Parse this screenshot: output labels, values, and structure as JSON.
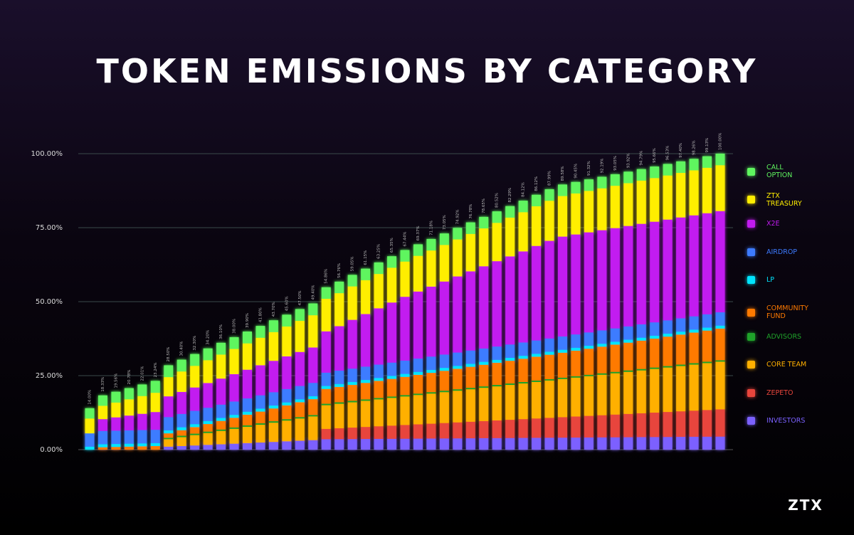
{
  "chart_data": {
    "type": "stacked_bar",
    "title": "TOKEN EMISSIONS BY CATEGORY",
    "brand": "ZTX",
    "ylim": [
      0,
      100
    ],
    "yticks": [
      {
        "value": 0,
        "label": "0.00%"
      },
      {
        "value": 25,
        "label": "25.00%"
      },
      {
        "value": 50,
        "label": "50.00%"
      },
      {
        "value": 75,
        "label": "75.00%"
      },
      {
        "value": 100,
        "label": "100.00%"
      }
    ],
    "grid": true,
    "legend": "right",
    "totals": [
      14.0,
      18.33,
      19.56,
      20.78,
      22.01,
      23.24,
      28.5,
      30.4,
      32.3,
      34.2,
      36.1,
      38.0,
      39.9,
      41.8,
      43.7,
      45.6,
      47.5,
      49.4,
      54.86,
      56.76,
      59.05,
      61.15,
      63.25,
      65.35,
      67.44,
      69.37,
      71.18,
      73.05,
      74.92,
      76.78,
      78.65,
      80.52,
      82.29,
      84.12,
      86.12,
      87.99,
      89.58,
      90.45,
      91.32,
      92.19,
      93.05,
      93.92,
      94.79,
      95.66,
      96.53,
      97.4,
      98.26,
      99.13,
      100.0
    ],
    "total_labels": [
      "14.00%",
      "18.33%",
      "19.56%",
      "20.78%",
      "22.01%",
      "23.24%",
      "28.50%",
      "30.40%",
      "32.30%",
      "34.20%",
      "36.10%",
      "38.00%",
      "39.90%",
      "41.80%",
      "43.70%",
      "45.60%",
      "47.50%",
      "49.40%",
      "54.86%",
      "56.76%",
      "59.05%",
      "61.15%",
      "63.25%",
      "65.35%",
      "67.44%",
      "69.37%",
      "71.18%",
      "73.05%",
      "74.92%",
      "76.78%",
      "78.65%",
      "80.52%",
      "82.29%",
      "84.12%",
      "86.12%",
      "87.99%",
      "89.58%",
      "90.45%",
      "91.32%",
      "92.19%",
      "93.05%",
      "93.92%",
      "94.79%",
      "95.66%",
      "96.53%",
      "97.40%",
      "98.26%",
      "99.13%",
      "100.00%"
    ],
    "series": [
      {
        "name": "INVESTORS",
        "color": "#7b61ff",
        "values": [
          0,
          0,
          0,
          0,
          0,
          0,
          1.0,
          1.2,
          1.4,
          1.6,
          1.8,
          2.0,
          2.2,
          2.4,
          2.6,
          2.8,
          3.0,
          3.2,
          3.5,
          3.53,
          3.56,
          3.59,
          3.62,
          3.65,
          3.68,
          3.71,
          3.74,
          3.77,
          3.8,
          3.83,
          3.86,
          3.89,
          3.92,
          3.95,
          3.98,
          4.01,
          4.04,
          4.07,
          4.1,
          4.13,
          4.16,
          4.19,
          4.22,
          4.25,
          4.28,
          4.31,
          4.34,
          4.37,
          4.4
        ]
      },
      {
        "name": "ZEPETO",
        "color": "#e8453c",
        "values": [
          0,
          0,
          0,
          0,
          0,
          0,
          0,
          0,
          0,
          0,
          0,
          0,
          0,
          0,
          0,
          0,
          0,
          0,
          3.5,
          3.69,
          3.88,
          4.07,
          4.26,
          4.45,
          4.64,
          4.83,
          5.02,
          5.21,
          5.4,
          5.59,
          5.78,
          5.97,
          6.16,
          6.35,
          6.54,
          6.73,
          6.92,
          7.11,
          7.3,
          7.49,
          7.68,
          7.87,
          8.06,
          8.25,
          8.44,
          8.63,
          8.82,
          9.01,
          9.2
        ]
      },
      {
        "name": "CORE TEAM",
        "color": "#ffb000",
        "values": [
          0,
          0,
          0,
          0,
          0,
          0,
          2.5,
          3,
          3.5,
          4,
          4.5,
          5,
          5.5,
          6,
          6.5,
          7,
          7.5,
          8,
          8,
          8.27,
          8.54,
          8.81,
          9.08,
          9.35,
          9.62,
          9.89,
          10.16,
          10.43,
          10.7,
          10.97,
          11.24,
          11.51,
          11.78,
          12.05,
          12.32,
          12.59,
          12.86,
          13.13,
          13.4,
          13.67,
          13.94,
          14.21,
          14.48,
          14.75,
          15.02,
          15.29,
          15.56,
          15.83,
          16.1
        ]
      },
      {
        "name": "ADVISORS",
        "color": "#1fa32a",
        "values": [
          0,
          0,
          0,
          0,
          0,
          0,
          0.5,
          0.5,
          0.5,
          0.5,
          0.5,
          0.5,
          0.5,
          0.5,
          0.5,
          0.5,
          0.5,
          0.5,
          0.5,
          0.5,
          0.5,
          0.5,
          0.5,
          0.5,
          0.5,
          0.5,
          0.5,
          0.5,
          0.5,
          0.5,
          0.5,
          0.5,
          0.5,
          0.5,
          0.5,
          0.5,
          0.5,
          0.5,
          0.5,
          0.5,
          0.5,
          0.5,
          0.5,
          0.5,
          0.5,
          0.5,
          0.5,
          0.5,
          0.5
        ]
      },
      {
        "name": "COMMUNITY FUND",
        "color": "#ff7a00",
        "values": [
          0,
          0.8,
          0.9,
          1.0,
          1.1,
          1.2,
          1.5,
          1.85,
          2.2,
          2.55,
          2.9,
          3.25,
          3.6,
          3.95,
          4.3,
          4.65,
          5.0,
          5.35,
          5,
          5.19,
          5.38,
          5.57,
          5.76,
          5.95,
          6.14,
          6.33,
          6.52,
          6.71,
          6.9,
          7.09,
          7.28,
          7.47,
          7.66,
          7.85,
          8.04,
          8.23,
          8.42,
          8.61,
          8.8,
          8.99,
          9.18,
          9.37,
          9.56,
          9.75,
          9.94,
          10.13,
          10.32,
          10.51,
          10.7
        ]
      },
      {
        "name": "LP",
        "color": "#00e5ff",
        "values": [
          1,
          1,
          1,
          1,
          1,
          1,
          1,
          1,
          1,
          1,
          1,
          1,
          1,
          1,
          1,
          1,
          1,
          1,
          1,
          1,
          1,
          1,
          1,
          1,
          1,
          1,
          1,
          1,
          1,
          1,
          1,
          1,
          1,
          1,
          1,
          1,
          1,
          1,
          1,
          1,
          1,
          1,
          1,
          1,
          1,
          1,
          1,
          1,
          1
        ]
      },
      {
        "name": "AIRDROP",
        "color": "#3d7bff",
        "values": [
          4.5,
          4.5,
          4.5,
          4.5,
          4.5,
          4.5,
          4.5,
          4.5,
          4.5,
          4.5,
          4.5,
          4.5,
          4.5,
          4.5,
          4.5,
          4.5,
          4.5,
          4.5,
          4.5,
          4.5,
          4.5,
          4.5,
          4.5,
          4.5,
          4.5,
          4.5,
          4.5,
          4.5,
          4.5,
          4.5,
          4.5,
          4.5,
          4.5,
          4.5,
          4.5,
          4.5,
          4.5,
          4.5,
          4.5,
          4.5,
          4.5,
          4.5,
          4.5,
          4.5,
          4.5,
          4.5,
          4.5,
          4.5,
          4.5
        ]
      },
      {
        "name": "X2E",
        "color": "#c21bf0",
        "values": [
          0,
          4.0,
          4.5,
          5.0,
          5.5,
          6.0,
          7,
          7.45,
          7.9,
          8.35,
          8.8,
          9.25,
          9.7,
          10.15,
          10.6,
          11.05,
          11.5,
          11.95,
          13.96,
          15.03,
          16.49,
          17.76,
          19.03,
          20.3,
          21.56,
          22.66,
          23.64,
          24.68,
          25.72,
          26.75,
          27.79,
          28.83,
          29.77,
          30.77,
          31.94,
          32.98,
          33.74,
          33.78,
          33.82,
          33.86,
          33.89,
          33.93,
          33.97,
          34.01,
          34.05,
          34.09,
          34.12,
          34.16,
          34.2
        ]
      },
      {
        "name": "ZTX TREASURY",
        "color": "#ffee00",
        "values": [
          5.0,
          4.5,
          5.0,
          5.5,
          6.0,
          6.5,
          6.5,
          6.9,
          7.3,
          7.7,
          8.1,
          8.5,
          8.9,
          9.3,
          9.7,
          10.1,
          10.5,
          10.9,
          11,
          11.15,
          11.3,
          11.45,
          11.6,
          11.75,
          11.9,
          12.05,
          12.2,
          12.35,
          12.5,
          12.65,
          12.8,
          12.95,
          13.1,
          13.25,
          13.4,
          13.55,
          13.7,
          13.85,
          14,
          14.15,
          14.3,
          14.45,
          14.6,
          14.75,
          14.9,
          15.05,
          15.2,
          15.35,
          15.5
        ]
      },
      {
        "name": "CALL OPTION",
        "color": "#5ff55f",
        "values": [
          3.5,
          3.53,
          3.66,
          3.78,
          3.91,
          4.04,
          4,
          4,
          4,
          4,
          4,
          4,
          4,
          4,
          4,
          4,
          4,
          4,
          3.9,
          3.9,
          3.9,
          3.9,
          3.9,
          3.9,
          3.9,
          3.9,
          3.9,
          3.9,
          3.9,
          3.9,
          3.9,
          3.9,
          3.9,
          3.9,
          3.9,
          3.9,
          3.9,
          3.9,
          3.9,
          3.9,
          3.9,
          3.9,
          3.9,
          3.9,
          3.9,
          3.9,
          3.9,
          3.9,
          3.9
        ]
      }
    ]
  }
}
